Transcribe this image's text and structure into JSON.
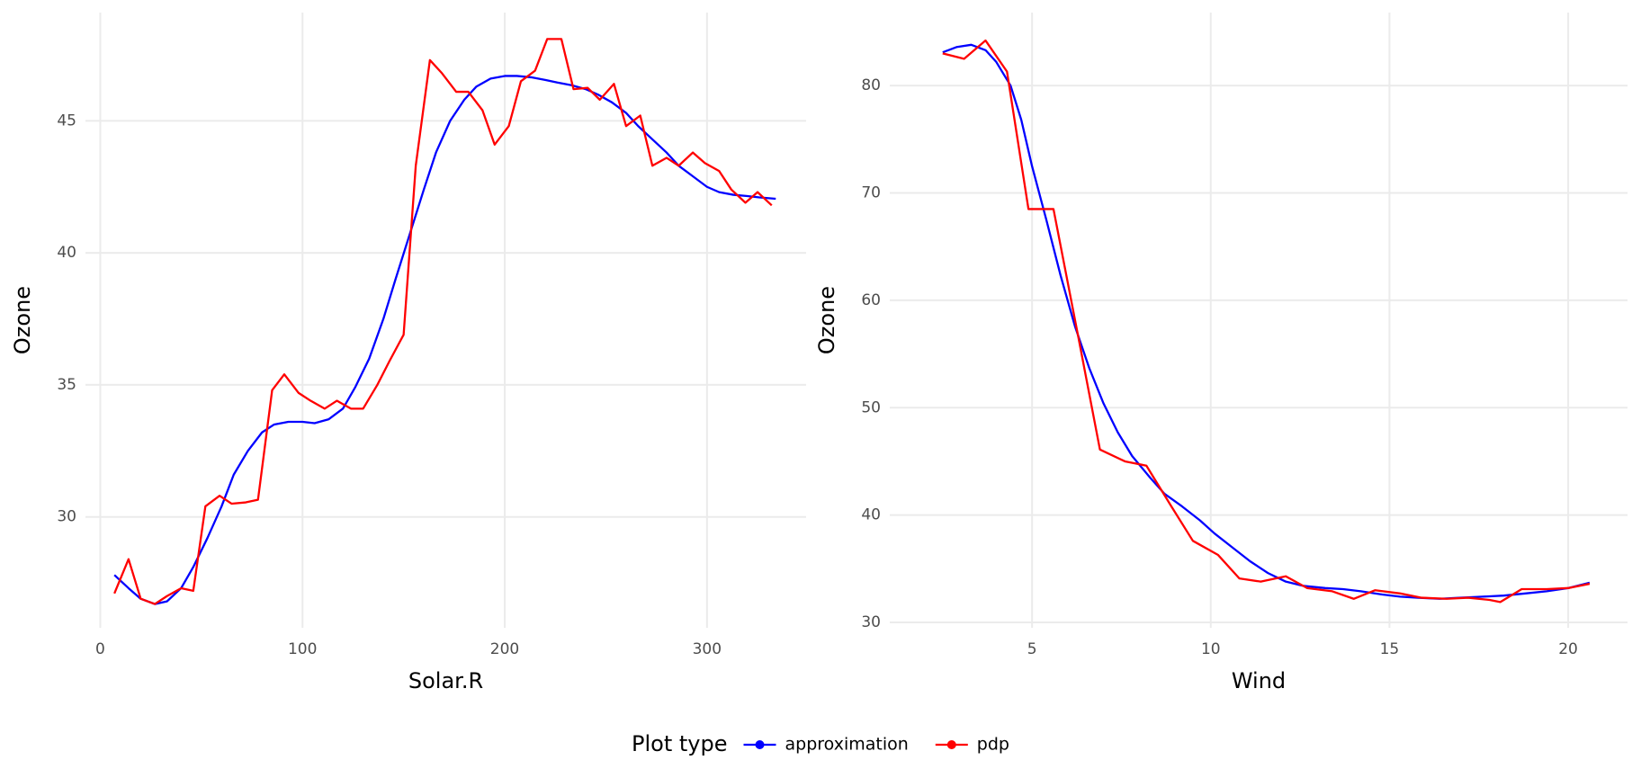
{
  "chart_data": [
    {
      "type": "line",
      "x_label": "Solar.R",
      "y_label": "Ozone",
      "xlim": [
        -7.3,
        349
      ],
      "ylim": [
        25.8,
        49.1
      ],
      "xticks": [
        0,
        100,
        200,
        300
      ],
      "yticks": [
        30,
        35,
        40,
        45
      ],
      "grid": true,
      "series": [
        {
          "name": "approximation",
          "color": "#0000ff",
          "x": [
            7,
            14,
            20,
            27,
            33,
            40,
            46,
            53,
            60,
            66,
            73,
            80,
            86,
            93,
            100,
            106,
            113,
            120,
            126,
            133,
            140,
            146,
            153,
            160,
            166,
            173,
            180,
            186,
            193,
            200,
            206,
            213,
            220,
            226,
            233,
            240,
            246,
            253,
            260,
            266,
            273,
            280,
            286,
            293,
            300,
            306,
            313,
            320,
            326,
            334
          ],
          "values": [
            27.8,
            27.3,
            26.9,
            26.7,
            26.8,
            27.3,
            28.1,
            29.2,
            30.4,
            31.6,
            32.5,
            33.2,
            33.5,
            33.6,
            33.6,
            33.55,
            33.7,
            34.1,
            34.9,
            36.0,
            37.5,
            39.0,
            40.7,
            42.4,
            43.8,
            45.0,
            45.8,
            46.3,
            46.6,
            46.7,
            46.7,
            46.65,
            46.55,
            46.45,
            46.35,
            46.2,
            46.0,
            45.7,
            45.3,
            44.8,
            44.3,
            43.8,
            43.3,
            42.9,
            42.5,
            42.3,
            42.2,
            42.15,
            42.1,
            42.05
          ]
        },
        {
          "name": "pdp",
          "color": "#ff0000",
          "x": [
            7,
            14,
            20,
            27,
            33,
            40,
            46,
            52,
            59,
            65,
            72,
            78,
            85,
            91,
            98,
            104,
            111,
            117,
            124,
            130,
            137,
            143,
            150,
            156,
            163,
            169,
            176,
            182,
            189,
            195,
            202,
            208,
            215,
            221,
            228,
            234,
            241,
            247,
            254,
            260,
            267,
            273,
            280,
            286,
            293,
            299,
            306,
            312,
            319,
            325,
            332
          ],
          "values": [
            27.1,
            28.4,
            26.9,
            26.7,
            27.0,
            27.3,
            27.2,
            30.4,
            30.8,
            30.5,
            30.55,
            30.65,
            34.8,
            35.4,
            34.7,
            34.4,
            34.1,
            34.4,
            34.1,
            34.1,
            35.0,
            35.9,
            36.9,
            43.3,
            47.3,
            46.8,
            46.1,
            46.1,
            45.4,
            44.1,
            44.8,
            46.5,
            46.9,
            48.1,
            48.1,
            46.2,
            46.25,
            45.8,
            46.4,
            44.8,
            45.2,
            43.3,
            43.6,
            43.3,
            43.8,
            43.4,
            43.1,
            42.4,
            41.9,
            42.3,
            41.8
          ]
        }
      ]
    },
    {
      "type": "line",
      "x_label": "Wind",
      "y_label": "Ozone",
      "xlim": [
        1.02,
        21.66
      ],
      "ylim": [
        29.5,
        86.8
      ],
      "xticks": [
        5,
        10,
        15,
        20
      ],
      "yticks": [
        30,
        40,
        50,
        60,
        70,
        80
      ],
      "grid": true,
      "series": [
        {
          "name": "approximation",
          "color": "#0000ff",
          "x": [
            2.5,
            2.9,
            3.3,
            3.7,
            4.0,
            4.4,
            4.7,
            5.0,
            5.4,
            5.8,
            6.2,
            6.6,
            7.0,
            7.4,
            7.8,
            8.3,
            8.7,
            9.2,
            9.7,
            10.1,
            10.6,
            11.1,
            11.6,
            12.1,
            12.6,
            13.2,
            13.7,
            14.2,
            14.8,
            15.3,
            15.8,
            16.4,
            17.0,
            17.6,
            18.2,
            18.8,
            19.4,
            20.0,
            20.6
          ],
          "values": [
            83.1,
            83.6,
            83.8,
            83.3,
            82.2,
            80.0,
            76.8,
            72.5,
            67.5,
            62.3,
            57.6,
            53.7,
            50.4,
            47.7,
            45.5,
            43.5,
            42.0,
            40.8,
            39.5,
            38.3,
            37.0,
            35.7,
            34.6,
            33.8,
            33.4,
            33.2,
            33.1,
            32.9,
            32.6,
            32.4,
            32.3,
            32.2,
            32.3,
            32.4,
            32.5,
            32.7,
            32.9,
            33.2,
            33.7
          ]
        },
        {
          "name": "pdp",
          "color": "#ff0000",
          "x": [
            2.5,
            3.1,
            3.7,
            4.3,
            4.9,
            5.6,
            6.3,
            6.9,
            7.6,
            8.2,
            8.9,
            9.5,
            10.2,
            10.8,
            11.4,
            12.1,
            12.7,
            13.4,
            14.0,
            14.6,
            15.3,
            15.9,
            16.6,
            17.2,
            17.8,
            18.1,
            18.7,
            19.4,
            20.0,
            20.6
          ],
          "values": [
            83.0,
            82.5,
            84.2,
            81.3,
            68.5,
            68.5,
            56.5,
            46.1,
            45.0,
            44.6,
            40.8,
            37.6,
            36.3,
            34.1,
            33.8,
            34.3,
            33.2,
            32.9,
            32.2,
            33.0,
            32.7,
            32.3,
            32.2,
            32.3,
            32.1,
            31.9,
            33.1,
            33.1,
            33.2,
            33.6
          ]
        }
      ]
    }
  ],
  "legend": {
    "title": "Plot type",
    "position": "bottom"
  }
}
